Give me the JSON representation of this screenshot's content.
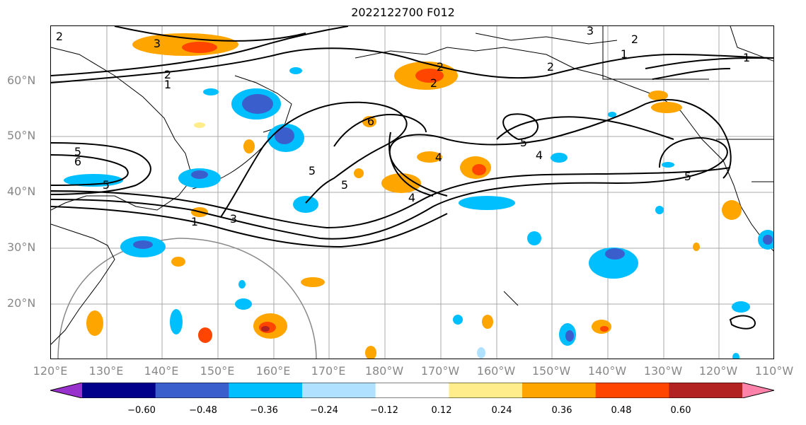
{
  "title": "2022122700 F012",
  "lat_labels": [
    "60°N",
    "50°N",
    "40°N",
    "30°N",
    "20°N"
  ],
  "lon_labels": [
    "120°E",
    "130°E",
    "140°E",
    "150°E",
    "160°E",
    "170°E",
    "180°W",
    "170°W",
    "160°W",
    "150°W",
    "140°W",
    "130°W",
    "120°W",
    "110°W"
  ],
  "colorbar": {
    "colors": [
      "#9932cc",
      "#00008b",
      "#3a5fcd",
      "#00bfff",
      "#b0e2ff",
      "#ffffff",
      "#ffec8b",
      "#ffa500",
      "#ff4500",
      "#b22222",
      "#ff82ab"
    ],
    "tick_labels": [
      "−0.60",
      "−0.48",
      "−0.36",
      "−0.24",
      "−0.12",
      "0.12",
      "0.24",
      "0.36",
      "0.48",
      "0.60"
    ]
  },
  "contour_labels": [
    "3",
    "2",
    "1",
    "5",
    "6",
    "5",
    "4",
    "5",
    "4",
    "6",
    "2",
    "2",
    "3",
    "1",
    "2",
    "1",
    "2",
    "5",
    "4",
    "5",
    "1",
    "3",
    "2",
    "5"
  ]
}
